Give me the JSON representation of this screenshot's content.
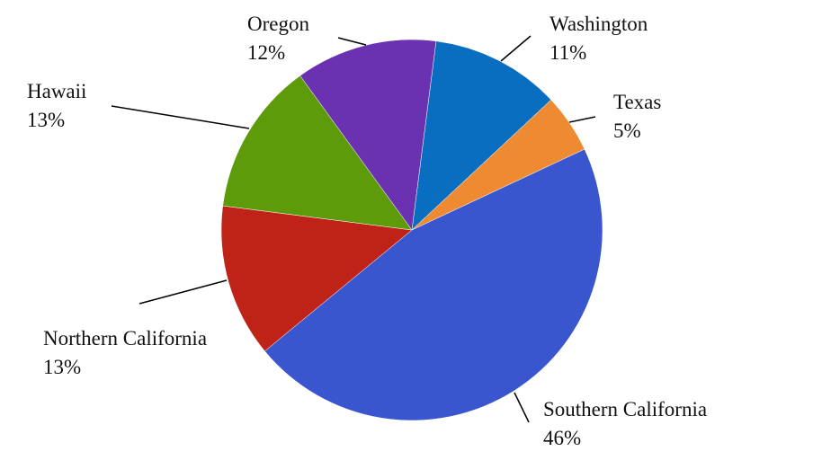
{
  "chart_data": {
    "type": "pie",
    "categories": [
      "Washington",
      "Texas",
      "Southern California",
      "Northern California",
      "Hawaii",
      "Oregon"
    ],
    "values": [
      11,
      5,
      46,
      13,
      13,
      12
    ],
    "value_labels": [
      "11%",
      "5%",
      "46%",
      "13%",
      "13%",
      "12%"
    ],
    "colors": [
      "#0a6ec0",
      "#ed8a32",
      "#3a56cf",
      "#bf2318",
      "#5e9b0a",
      "#6a32b0"
    ]
  }
}
